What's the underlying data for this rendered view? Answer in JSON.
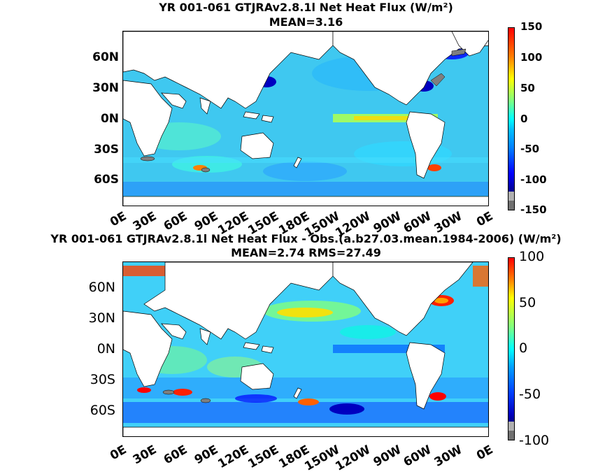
{
  "panel1": {
    "title": "YR 001-061 GTJRAv2.8.1l  Net Heat Flux (W/m²)",
    "subtitle": "MEAN=3.16",
    "lat_labels": [
      "60N",
      "30N",
      "0N",
      "30S",
      "60S"
    ],
    "lon_labels": [
      "0E",
      "30E",
      "60E",
      "90E",
      "120E",
      "150E",
      "180E",
      "150W",
      "120W",
      "90W",
      "60W",
      "30W",
      "0E"
    ],
    "colorbar_ticks": [
      "150",
      "100",
      "50",
      "0",
      "-50",
      "-100",
      "-150"
    ]
  },
  "panel2": {
    "title": "YR 001-061 GTJRAv2.8.1l  Net Heat Flux - Obs.(a.b27.03.mean.1984-2006) (W/m²)",
    "subtitle": "MEAN=2.74 RMS=27.49",
    "lat_labels": [
      "60N",
      "30N",
      "0N",
      "30S",
      "60S"
    ],
    "lon_labels": [
      "0E",
      "30E",
      "60E",
      "90E",
      "120E",
      "150E",
      "180E",
      "150W",
      "120W",
      "90W",
      "60W",
      "30W",
      "0E"
    ],
    "colorbar_ticks": [
      "100",
      "50",
      "0",
      "-50",
      "-100"
    ]
  },
  "colors": {
    "land": "#ffffff",
    "ice": "#7f7f7f",
    "ocean_base": "#3fc8f0",
    "colormap": [
      "#00008f",
      "#0000ff",
      "#0080ff",
      "#00ffff",
      "#80ff80",
      "#ffff00",
      "#ff8000",
      "#ff0000",
      "#800000"
    ]
  }
}
